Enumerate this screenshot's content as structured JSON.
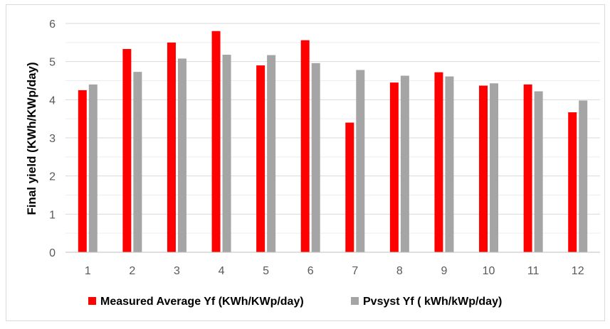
{
  "chart_data": {
    "type": "bar",
    "title": "",
    "xlabel": "",
    "ylabel": "Final yield (KWh/KWp/day)",
    "categories": [
      "1",
      "2",
      "3",
      "4",
      "5",
      "6",
      "7",
      "8",
      "9",
      "10",
      "11",
      "12"
    ],
    "series": [
      {
        "name": "Measured Average Yf (KWh/KWp/day)",
        "color": "#ff0000",
        "values": [
          4.25,
          5.33,
          5.5,
          5.8,
          4.9,
          5.56,
          3.4,
          4.45,
          4.72,
          4.37,
          4.4,
          3.67
        ]
      },
      {
        "name": "Pvsyst Yf ( kWh/kWp/day)",
        "color": "#a5a5a5",
        "values": [
          4.4,
          4.73,
          5.08,
          5.18,
          5.17,
          4.96,
          4.78,
          4.63,
          4.61,
          4.43,
          4.22,
          3.98
        ]
      }
    ],
    "ylim": [
      0,
      6
    ],
    "yticks": [
      "0",
      "1",
      "2",
      "3",
      "4",
      "5",
      "6"
    ],
    "grid": true,
    "legend_position": "bottom"
  }
}
